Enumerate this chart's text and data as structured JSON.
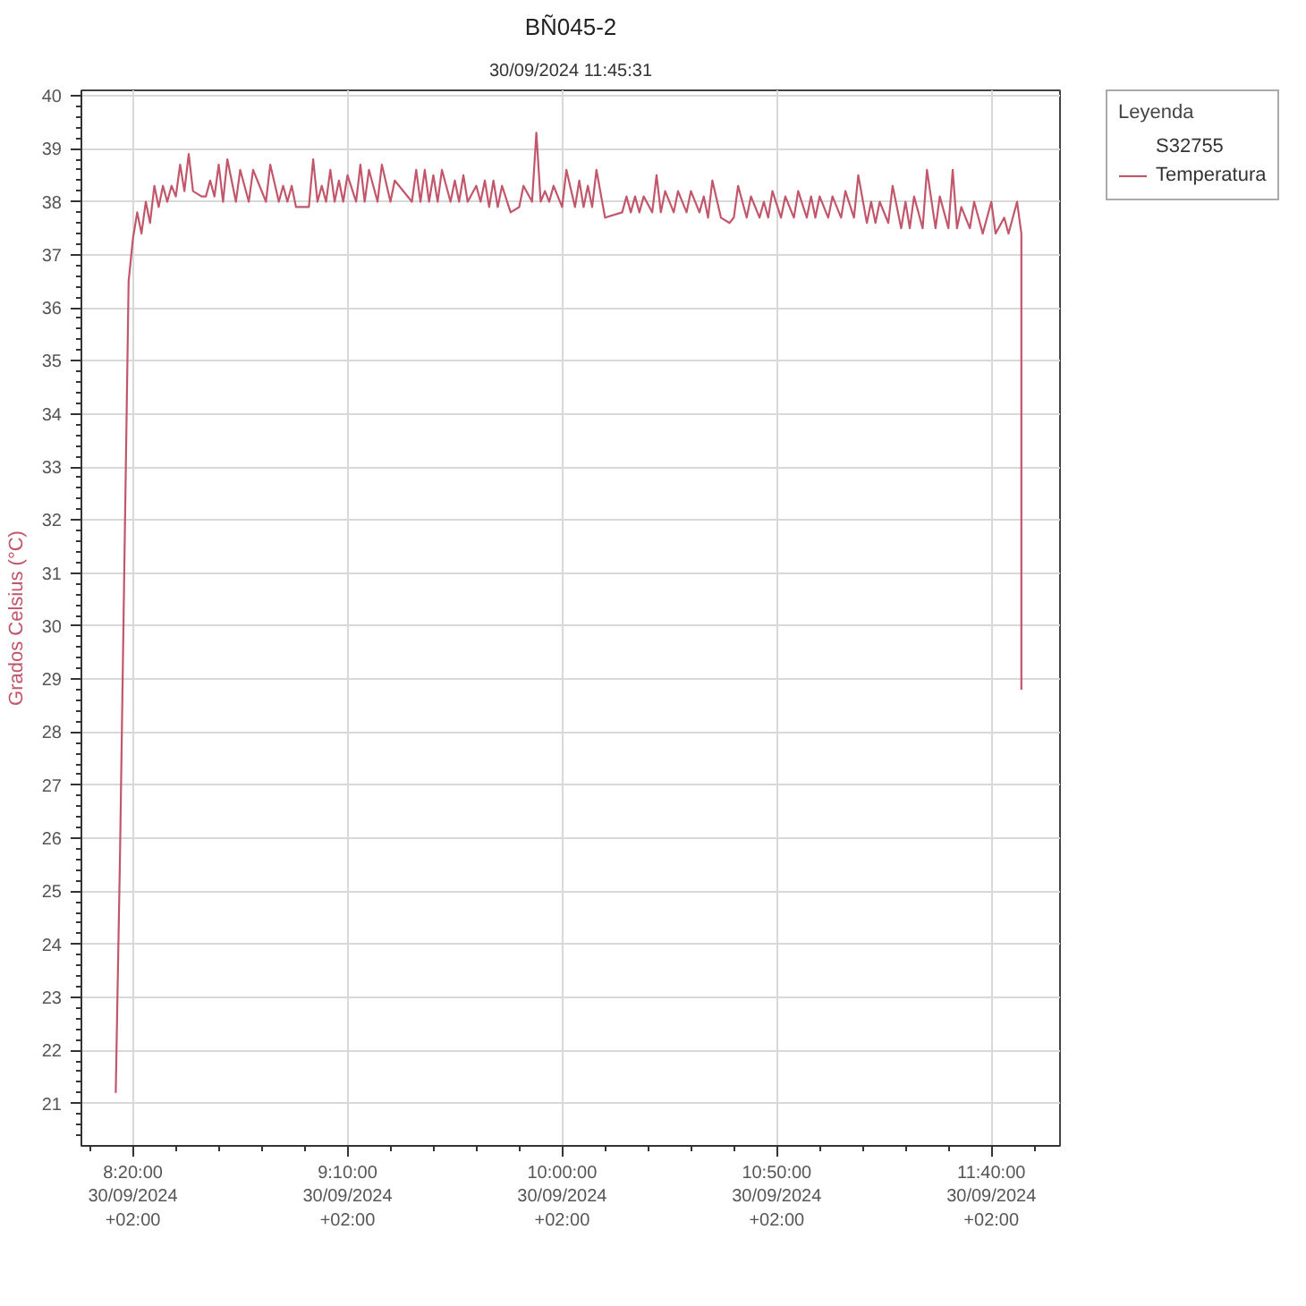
{
  "chart_data": {
    "type": "line",
    "title": "BÑ045-2",
    "subtitle": "30/09/2024 11:45:31",
    "ylabel": "Grados Celsius (°C)",
    "legend_title": "Leyenda",
    "annotations": [
      "S32755"
    ],
    "xlim": [
      "2024-09-30T08:08",
      "2024-09-30T11:56"
    ],
    "xticks": [
      {
        "value": "2024-09-30T08:10",
        "label": null
      },
      {
        "value": "2024-09-30T08:20",
        "label": "8:20:00\n30/09/2024\n+02:00"
      },
      {
        "value": "2024-09-30T08:30",
        "label": null
      },
      {
        "value": "2024-09-30T08:40",
        "label": null
      },
      {
        "value": "2024-09-30T08:50",
        "label": null
      },
      {
        "value": "2024-09-30T09:00",
        "label": null
      },
      {
        "value": "2024-09-30T09:10",
        "label": "9:10:00\n30/09/2024\n+02:00"
      },
      {
        "value": "2024-09-30T09:20",
        "label": null
      },
      {
        "value": "2024-09-30T09:30",
        "label": null
      },
      {
        "value": "2024-09-30T09:40",
        "label": null
      },
      {
        "value": "2024-09-30T09:50",
        "label": null
      },
      {
        "value": "2024-09-30T10:00",
        "label": "10:00:00\n30/09/2024\n+02:00"
      },
      {
        "value": "2024-09-30T10:10",
        "label": null
      },
      {
        "value": "2024-09-30T10:20",
        "label": null
      },
      {
        "value": "2024-09-30T10:30",
        "label": null
      },
      {
        "value": "2024-09-30T10:40",
        "label": null
      },
      {
        "value": "2024-09-30T10:50",
        "label": "10:50:00\n30/09/2024\n+02:00"
      },
      {
        "value": "2024-09-30T11:00",
        "label": null
      },
      {
        "value": "2024-09-30T11:10",
        "label": null
      },
      {
        "value": "2024-09-30T11:20",
        "label": null
      },
      {
        "value": "2024-09-30T11:30",
        "label": null
      },
      {
        "value": "2024-09-30T11:40",
        "label": "11:40:00\n30/09/2024\n+02:00"
      },
      {
        "value": "2024-09-30T11:50",
        "label": null
      }
    ],
    "ylim": [
      20.2,
      40.1
    ],
    "yticks": [
      {
        "value": 20.4,
        "label": null
      },
      {
        "value": 20.6,
        "label": null
      },
      {
        "value": 20.8,
        "label": null
      },
      21,
      {
        "value": 21.2,
        "label": null
      },
      {
        "value": 21.4,
        "label": null
      },
      {
        "value": 21.6,
        "label": null
      },
      {
        "value": 21.8,
        "label": null
      },
      22,
      {
        "value": 22.2,
        "label": null
      },
      {
        "value": 22.4,
        "label": null
      },
      {
        "value": 22.6,
        "label": null
      },
      {
        "value": 22.8,
        "label": null
      },
      23,
      {
        "value": 23.2,
        "label": null
      },
      {
        "value": 23.4,
        "label": null
      },
      {
        "value": 23.6,
        "label": null
      },
      {
        "value": 23.8,
        "label": null
      },
      24,
      {
        "value": 24.2,
        "label": null
      },
      {
        "value": 24.4,
        "label": null
      },
      {
        "value": 24.6,
        "label": null
      },
      {
        "value": 24.8,
        "label": null
      },
      25,
      {
        "value": 25.2,
        "label": null
      },
      {
        "value": 25.4,
        "label": null
      },
      {
        "value": 25.6,
        "label": null
      },
      {
        "value": 25.8,
        "label": null
      },
      26,
      {
        "value": 26.2,
        "label": null
      },
      {
        "value": 26.4,
        "label": null
      },
      {
        "value": 26.6,
        "label": null
      },
      {
        "value": 26.8,
        "label": null
      },
      27,
      {
        "value": 27.2,
        "label": null
      },
      {
        "value": 27.4,
        "label": null
      },
      {
        "value": 27.6,
        "label": null
      },
      {
        "value": 27.8,
        "label": null
      },
      28,
      {
        "value": 28.2,
        "label": null
      },
      {
        "value": 28.4,
        "label": null
      },
      {
        "value": 28.6,
        "label": null
      },
      {
        "value": 28.8,
        "label": null
      },
      29,
      {
        "value": 29.2,
        "label": null
      },
      {
        "value": 29.4,
        "label": null
      },
      {
        "value": 29.6,
        "label": null
      },
      {
        "value": 29.8,
        "label": null
      },
      30,
      {
        "value": 30.2,
        "label": null
      },
      {
        "value": 30.4,
        "label": null
      },
      {
        "value": 30.6,
        "label": null
      },
      {
        "value": 30.8,
        "label": null
      },
      31,
      {
        "value": 31.2,
        "label": null
      },
      {
        "value": 31.4,
        "label": null
      },
      {
        "value": 31.6,
        "label": null
      },
      {
        "value": 31.8,
        "label": null
      },
      32,
      {
        "value": 32.2,
        "label": null
      },
      {
        "value": 32.4,
        "label": null
      },
      {
        "value": 32.6,
        "label": null
      },
      {
        "value": 32.8,
        "label": null
      },
      33,
      {
        "value": 33.2,
        "label": null
      },
      {
        "value": 33.4,
        "label": null
      },
      {
        "value": 33.6,
        "label": null
      },
      {
        "value": 33.8,
        "label": null
      },
      34,
      {
        "value": 34.2,
        "label": null
      },
      {
        "value": 34.4,
        "label": null
      },
      {
        "value": 34.6,
        "label": null
      },
      {
        "value": 34.8,
        "label": null
      },
      35,
      {
        "value": 35.2,
        "label": null
      },
      {
        "value": 35.4,
        "label": null
      },
      {
        "value": 35.6,
        "label": null
      },
      {
        "value": 35.8,
        "label": null
      },
      36,
      {
        "value": 36.2,
        "label": null
      },
      {
        "value": 36.4,
        "label": null
      },
      {
        "value": 36.6,
        "label": null
      },
      {
        "value": 36.8,
        "label": null
      },
      37,
      {
        "value": 37.2,
        "label": null
      },
      {
        "value": 37.4,
        "label": null
      },
      {
        "value": 37.6,
        "label": null
      },
      {
        "value": 37.8,
        "label": null
      },
      38,
      {
        "value": 38.2,
        "label": null
      },
      {
        "value": 38.4,
        "label": null
      },
      {
        "value": 38.6,
        "label": null
      },
      {
        "value": 38.8,
        "label": null
      },
      39,
      {
        "value": 39.2,
        "label": null
      },
      {
        "value": 39.4,
        "label": null
      },
      {
        "value": 39.6,
        "label": null
      },
      {
        "value": 39.8,
        "label": null
      },
      40
    ],
    "grid": true,
    "legend": "top right",
    "x": [
      "2024-09-30T08:16",
      "2024-09-30T08:17",
      "2024-09-30T08:18",
      "2024-09-30T08:19",
      "2024-09-30T08:20",
      "2024-09-30T08:21",
      "2024-09-30T08:22",
      "2024-09-30T08:23",
      "2024-09-30T08:24",
      "2024-09-30T08:25",
      "2024-09-30T08:26",
      "2024-09-30T08:27",
      "2024-09-30T08:28",
      "2024-09-30T08:29",
      "2024-09-30T08:30",
      "2024-09-30T08:31",
      "2024-09-30T08:32",
      "2024-09-30T08:33",
      "2024-09-30T08:34",
      "2024-09-30T08:36",
      "2024-09-30T08:37",
      "2024-09-30T08:38",
      "2024-09-30T08:39",
      "2024-09-30T08:40",
      "2024-09-30T08:41",
      "2024-09-30T08:42",
      "2024-09-30T08:44",
      "2024-09-30T08:45",
      "2024-09-30T08:47",
      "2024-09-30T08:48",
      "2024-09-30T08:51",
      "2024-09-30T08:52",
      "2024-09-30T08:54",
      "2024-09-30T08:55",
      "2024-09-30T08:56",
      "2024-09-30T08:57",
      "2024-09-30T08:58",
      "2024-09-30T09:01",
      "2024-09-30T09:02",
      "2024-09-30T09:03",
      "2024-09-30T09:04",
      "2024-09-30T09:05",
      "2024-09-30T09:06",
      "2024-09-30T09:07",
      "2024-09-30T09:08",
      "2024-09-30T09:09",
      "2024-09-30T09:10",
      "2024-09-30T09:12",
      "2024-09-30T09:13",
      "2024-09-30T09:14",
      "2024-09-30T09:15",
      "2024-09-30T09:17",
      "2024-09-30T09:18",
      "2024-09-30T09:20",
      "2024-09-30T09:21",
      "2024-09-30T09:25",
      "2024-09-30T09:26",
      "2024-09-30T09:27",
      "2024-09-30T09:28",
      "2024-09-30T09:29",
      "2024-09-30T09:30",
      "2024-09-30T09:31",
      "2024-09-30T09:32",
      "2024-09-30T09:34",
      "2024-09-30T09:35",
      "2024-09-30T09:36",
      "2024-09-30T09:37",
      "2024-09-30T09:38",
      "2024-09-30T09:40",
      "2024-09-30T09:41",
      "2024-09-30T09:42",
      "2024-09-30T09:43",
      "2024-09-30T09:44",
      "2024-09-30T09:45",
      "2024-09-30T09:46",
      "2024-09-30T09:48",
      "2024-09-30T09:50",
      "2024-09-30T09:51",
      "2024-09-30T09:53",
      "2024-09-30T09:54",
      "2024-09-30T09:55",
      "2024-09-30T09:56",
      "2024-09-30T09:57",
      "2024-09-30T09:58",
      "2024-09-30T10:00",
      "2024-09-30T10:01",
      "2024-09-30T10:03",
      "2024-09-30T10:04",
      "2024-09-30T10:05",
      "2024-09-30T10:06",
      "2024-09-30T10:07",
      "2024-09-30T10:08",
      "2024-09-30T10:10",
      "2024-09-30T10:14",
      "2024-09-30T10:15",
      "2024-09-30T10:16",
      "2024-09-30T10:17",
      "2024-09-30T10:18",
      "2024-09-30T10:19",
      "2024-09-30T10:21",
      "2024-09-30T10:22",
      "2024-09-30T10:23",
      "2024-09-30T10:24",
      "2024-09-30T10:26",
      "2024-09-30T10:27",
      "2024-09-30T10:29",
      "2024-09-30T10:30",
      "2024-09-30T10:32",
      "2024-09-30T10:33",
      "2024-09-30T10:34",
      "2024-09-30T10:35",
      "2024-09-30T10:37",
      "2024-09-30T10:39",
      "2024-09-30T10:40",
      "2024-09-30T10:41",
      "2024-09-30T10:43",
      "2024-09-30T10:44",
      "2024-09-30T10:46",
      "2024-09-30T10:47",
      "2024-09-30T10:48",
      "2024-09-30T10:49",
      "2024-09-30T10:51",
      "2024-09-30T10:52",
      "2024-09-30T10:54",
      "2024-09-30T10:55",
      "2024-09-30T10:57",
      "2024-09-30T10:58",
      "2024-09-30T10:59",
      "2024-09-30T11:00",
      "2024-09-30T11:02",
      "2024-09-30T11:03",
      "2024-09-30T11:05",
      "2024-09-30T11:06",
      "2024-09-30T11:08",
      "2024-09-30T11:09",
      "2024-09-30T11:11",
      "2024-09-30T11:12",
      "2024-09-30T11:13",
      "2024-09-30T11:14",
      "2024-09-30T11:16",
      "2024-09-30T11:17",
      "2024-09-30T11:19",
      "2024-09-30T11:20",
      "2024-09-30T11:21",
      "2024-09-30T11:22",
      "2024-09-30T11:24",
      "2024-09-30T11:25",
      "2024-09-30T11:27",
      "2024-09-30T11:28",
      "2024-09-30T11:30",
      "2024-09-30T11:31",
      "2024-09-30T11:32",
      "2024-09-30T11:33",
      "2024-09-30T11:35",
      "2024-09-30T11:36",
      "2024-09-30T11:38",
      "2024-09-30T11:40",
      "2024-09-30T11:41",
      "2024-09-30T11:43",
      "2024-09-30T11:44",
      "2024-09-30T11:46",
      "2024-09-30T11:47",
      "2024-09-30T11:47"
    ],
    "series": [
      {
        "name": "Temperatura",
        "color": "#c2566b",
        "values": [
          21.2,
          25.7,
          31.1,
          36.5,
          37.3,
          37.8,
          37.4,
          38.0,
          37.6,
          38.3,
          37.9,
          38.3,
          38.0,
          38.3,
          38.1,
          38.7,
          38.2,
          38.9,
          38.2,
          38.1,
          38.1,
          38.4,
          38.1,
          38.7,
          38.0,
          38.8,
          38.0,
          38.6,
          38.0,
          38.6,
          38.0,
          38.7,
          38.0,
          38.3,
          38.0,
          38.3,
          37.9,
          37.9,
          38.8,
          38.0,
          38.3,
          38.0,
          38.6,
          38.0,
          38.4,
          38.0,
          38.5,
          38.0,
          38.7,
          38.0,
          38.6,
          38.0,
          38.7,
          38.0,
          38.4,
          38.0,
          38.6,
          38.0,
          38.6,
          38.0,
          38.5,
          38.0,
          38.6,
          38.0,
          38.4,
          38.0,
          38.5,
          38.0,
          38.3,
          38.0,
          38.4,
          37.9,
          38.4,
          37.9,
          38.3,
          37.8,
          37.9,
          38.3,
          38.0,
          39.3,
          38.0,
          38.2,
          38.0,
          38.3,
          37.9,
          38.6,
          37.9,
          38.4,
          37.9,
          38.3,
          37.9,
          38.6,
          37.7,
          37.8,
          38.1,
          37.8,
          38.1,
          37.8,
          38.1,
          37.8,
          38.5,
          37.8,
          38.2,
          37.8,
          38.2,
          37.8,
          38.2,
          37.8,
          38.1,
          37.7,
          38.4,
          37.7,
          37.6,
          37.7,
          38.3,
          37.7,
          38.1,
          37.7,
          38.0,
          37.7,
          38.2,
          37.7,
          38.1,
          37.7,
          38.2,
          37.7,
          38.1,
          37.7,
          38.1,
          37.7,
          38.1,
          37.7,
          38.2,
          37.7,
          38.5,
          37.6,
          38.0,
          37.6,
          38.0,
          37.6,
          38.3,
          37.5,
          38.0,
          37.5,
          38.1,
          37.5,
          38.6,
          37.5,
          38.1,
          37.5,
          38.6,
          37.5,
          37.9,
          37.5,
          38.0,
          37.4,
          38.0,
          37.4,
          37.7,
          37.4,
          38.0,
          37.4,
          28.8
        ]
      }
    ]
  }
}
